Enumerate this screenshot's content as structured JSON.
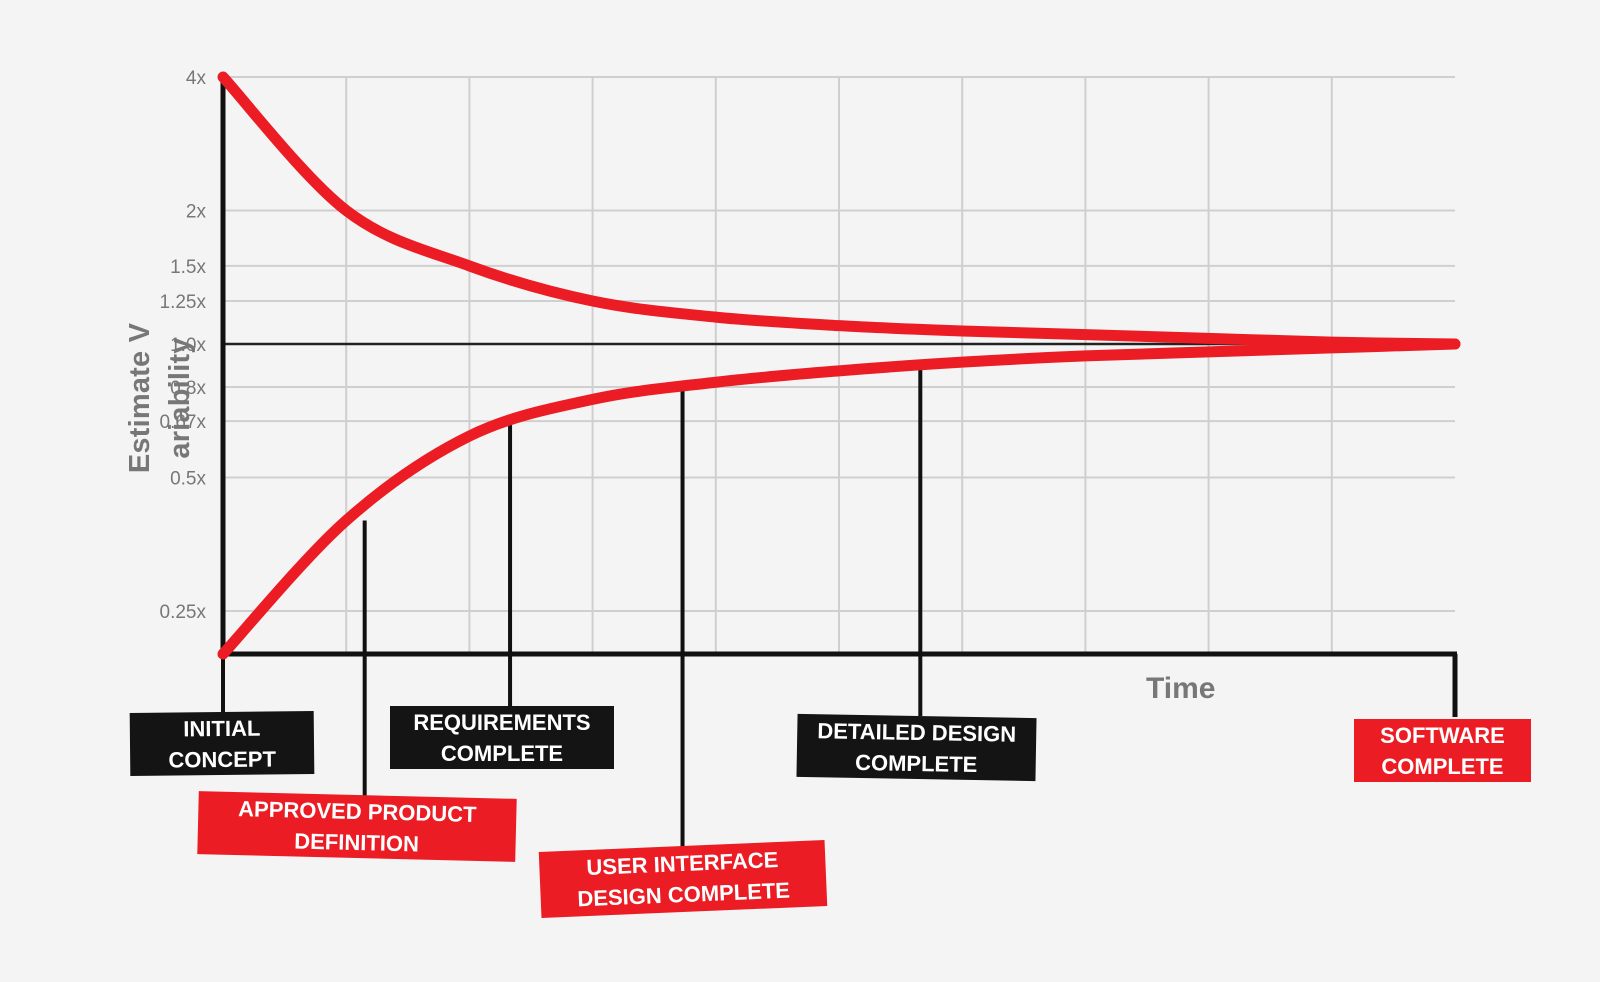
{
  "chart_data": {
    "type": "line",
    "xlabel": "Time",
    "ylabel": "Estimate V ariability",
    "y_scale": "log",
    "y_ticks": [
      "0.25x",
      "0.5x",
      "0.67x",
      "0.8x",
      "1.0x",
      "1.25x",
      "1.5x",
      "2x",
      "4x"
    ],
    "y_tick_values": [
      0.25,
      0.5,
      0.67,
      0.8,
      1.0,
      1.25,
      1.5,
      2,
      4
    ],
    "ylim": [
      0.2,
      4
    ],
    "grid": true,
    "series": [
      {
        "role": "upper",
        "x": [
          0,
          0.1,
          0.2,
          0.3,
          0.4,
          0.5,
          0.6,
          0.7,
          0.8,
          0.9,
          1.0
        ],
        "y": [
          4.0,
          2.0,
          1.5,
          1.25,
          1.15,
          1.1,
          1.07,
          1.05,
          1.03,
          1.01,
          1.0
        ]
      },
      {
        "role": "lower",
        "x": [
          0,
          0.1,
          0.2,
          0.3,
          0.4,
          0.5,
          0.6,
          0.7,
          0.8,
          0.9,
          1.0
        ],
        "y": [
          0.2,
          0.4,
          0.62,
          0.75,
          0.82,
          0.87,
          0.91,
          0.94,
          0.96,
          0.98,
          1.0
        ]
      }
    ],
    "line_color": "#ec1c24",
    "milestones": [
      {
        "lines": [
          "INITIAL",
          "CONCEPT"
        ],
        "x": 0.0,
        "y": 0.2,
        "style": "dark"
      },
      {
        "lines": [
          "APPROVED PRODUCT",
          "DEFINITION"
        ],
        "x": 0.115,
        "y": 0.4,
        "style": "red"
      },
      {
        "lines": [
          "REQUIREMENTS",
          "COMPLETE"
        ],
        "x": 0.233,
        "y": 0.67,
        "style": "dark"
      },
      {
        "lines": [
          "USER INTERFACE",
          "DESIGN COMPLETE"
        ],
        "x": 0.373,
        "y": 0.8,
        "style": "red"
      },
      {
        "lines": [
          "DETAILED DESIGN",
          "COMPLETE"
        ],
        "x": 0.566,
        "y": 0.9,
        "style": "dark"
      },
      {
        "lines": [
          "SOFTWARE",
          "COMPLETE"
        ],
        "x": 1.0,
        "y": 1.0,
        "style": "red"
      }
    ]
  }
}
